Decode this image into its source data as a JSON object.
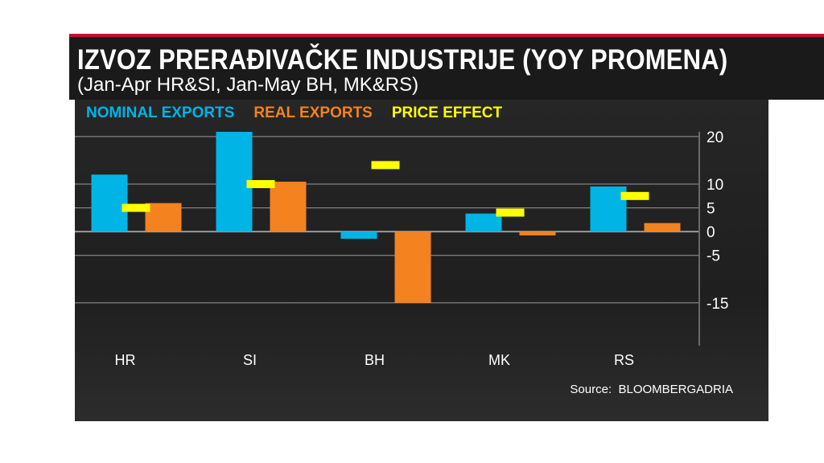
{
  "chart_data": {
    "type": "bar",
    "title": "IZVOZ PRERAĐIVAČKE INDUSTRIJE (YOY PROMENA)",
    "subtitle": "(Jan-Apr HR&SI, Jan-May BH, MK&RS)",
    "categories": [
      "HR",
      "SI",
      "BH",
      "MK",
      "RS"
    ],
    "series": [
      {
        "name": "NOMINAL EXPORTS",
        "type": "bar",
        "color": "#00b4e6",
        "values": [
          12,
          21,
          -1.5,
          3.8,
          9.5
        ]
      },
      {
        "name": "REAL EXPORTS",
        "type": "bar",
        "color": "#f4821f",
        "values": [
          6,
          10.5,
          -15,
          -0.8,
          1.8
        ]
      },
      {
        "name": "PRICE EFFECT",
        "type": "marker",
        "color": "#ffff00",
        "values": [
          5,
          10,
          14,
          4,
          7.5
        ]
      }
    ],
    "yticks": [
      20,
      10,
      5,
      0,
      -5,
      -15
    ],
    "ylim": [
      -24,
      21
    ],
    "xlabel": "",
    "ylabel": "",
    "legend_position": "top-left",
    "source_label": "Source:",
    "source_value": "BLOOMBERGADRIA"
  }
}
